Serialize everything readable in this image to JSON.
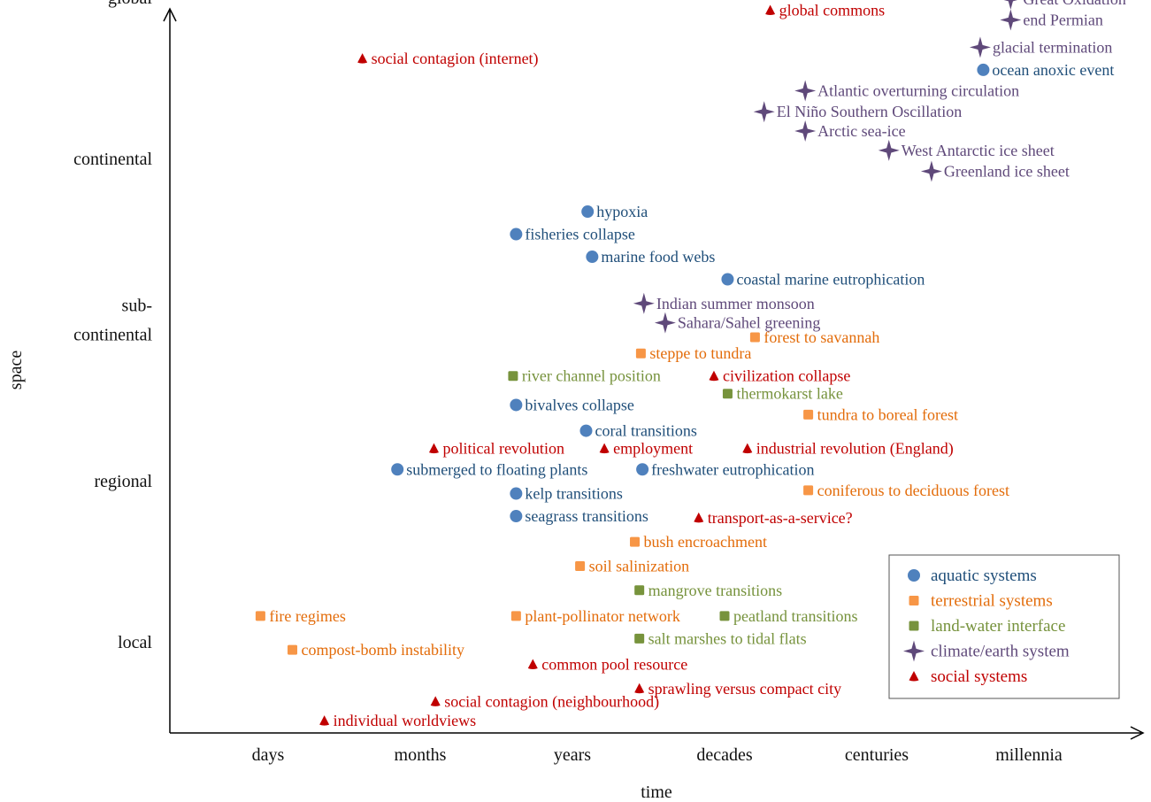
{
  "chart_data": {
    "type": "scatter",
    "title": "",
    "xlabel": "time",
    "ylabel": "space",
    "x_categories": [
      "days",
      "months",
      "years",
      "decades",
      "centuries",
      "millennia"
    ],
    "y_categories": [
      "local",
      "regional",
      "sub-continental",
      "continental",
      "global"
    ],
    "y_tick_labels": {
      "local": [
        "local"
      ],
      "regional": [
        "regional"
      ],
      "sub-continental": [
        "sub-",
        "continental"
      ],
      "continental": [
        "continental"
      ],
      "global": [
        "global"
      ]
    },
    "xlim": [
      -0.5,
      5.5
    ],
    "ylim": [
      -0.55,
      4.1
    ],
    "grid": false,
    "legend_position": "bottom-right",
    "series": [
      {
        "name": "aquatic systems",
        "key": "aquatic",
        "color": "#4f81bd",
        "label_color": "#1f4e79",
        "marker": "circle",
        "points": [
          {
            "label": "ocean anoxic event",
            "x": 4.7,
            "y": 3.55
          },
          {
            "label": "hypoxia",
            "x": 2.1,
            "y": 2.67
          },
          {
            "label": "fisheries collapse",
            "x": 1.63,
            "y": 2.53
          },
          {
            "label": "marine food webs",
            "x": 2.13,
            "y": 2.39
          },
          {
            "label": "coastal marine eutrophication",
            "x": 3.02,
            "y": 2.25
          },
          {
            "label": "bivalves collapse",
            "x": 1.63,
            "y": 1.47
          },
          {
            "label": "coral transitions",
            "x": 2.09,
            "y": 1.31
          },
          {
            "label": "submerged to floating plants",
            "x": 0.85,
            "y": 1.07
          },
          {
            "label": "freshwater eutrophication",
            "x": 2.46,
            "y": 1.07
          },
          {
            "label": "kelp transitions",
            "x": 1.63,
            "y": 0.92
          },
          {
            "label": "seagrass transitions",
            "x": 1.63,
            "y": 0.78
          }
        ]
      },
      {
        "name": "terrestrial systems",
        "key": "terrestrial",
        "color": "#f79646",
        "label_color": "#e36c0a",
        "marker": "square",
        "points": [
          {
            "label": "forest to savannah",
            "x": 3.2,
            "y": 1.89
          },
          {
            "label": "steppe to tundra",
            "x": 2.45,
            "y": 1.79
          },
          {
            "label": "tundra to boreal forest",
            "x": 3.55,
            "y": 1.41
          },
          {
            "label": "coniferous to deciduous forest",
            "x": 3.55,
            "y": 0.94
          },
          {
            "label": "bush encroachment",
            "x": 2.41,
            "y": 0.62
          },
          {
            "label": "soil salinization",
            "x": 2.05,
            "y": 0.47
          },
          {
            "label": "fire regimes",
            "x": -0.05,
            "y": 0.16
          },
          {
            "label": "plant-pollinator network",
            "x": 1.63,
            "y": 0.16
          },
          {
            "label": "compost-bomb instability",
            "x": 0.16,
            "y": -0.05
          }
        ]
      },
      {
        "name": "land-water interface",
        "key": "landwater",
        "color": "#77933c",
        "label_color": "#76923c",
        "marker": "square",
        "points": [
          {
            "label": "river channel position",
            "x": 1.61,
            "y": 1.65
          },
          {
            "label": "thermokarst lake",
            "x": 3.02,
            "y": 1.54
          },
          {
            "label": "mangrove transitions",
            "x": 2.44,
            "y": 0.32
          },
          {
            "label": "peatland transitions",
            "x": 3.0,
            "y": 0.16
          },
          {
            "label": "salt marshes to tidal flats",
            "x": 2.44,
            "y": 0.02
          }
        ]
      },
      {
        "name": "climate/earth system",
        "key": "climate",
        "color": "#5f497a",
        "label_color": "#5f497a",
        "marker": "star",
        "points": [
          {
            "label": "Great Oxidation",
            "x": 4.88,
            "y": 3.99
          },
          {
            "label": "end Permian",
            "x": 4.88,
            "y": 3.86
          },
          {
            "label": "glacial termination",
            "x": 4.68,
            "y": 3.69
          },
          {
            "label": "Atlantic overturning circulation",
            "x": 3.53,
            "y": 3.42
          },
          {
            "label": "El Niño Southern Oscillation",
            "x": 3.26,
            "y": 3.29
          },
          {
            "label": "Arctic sea-ice",
            "x": 3.53,
            "y": 3.17
          },
          {
            "label": "West Antarctic ice sheet",
            "x": 4.08,
            "y": 3.05
          },
          {
            "label": "Greenland ice sheet",
            "x": 4.36,
            "y": 2.92
          },
          {
            "label": "Indian summer monsoon",
            "x": 2.47,
            "y": 2.1
          },
          {
            "label": "Sahara/Sahel greening",
            "x": 2.61,
            "y": 1.98
          }
        ]
      },
      {
        "name": "social systems",
        "key": "social",
        "color": "#c00000",
        "label_color": "#c00000",
        "marker": "triangle",
        "points": [
          {
            "label": "global commons",
            "x": 3.3,
            "y": 3.92
          },
          {
            "label": "social contagion (internet)",
            "x": 0.62,
            "y": 3.62
          },
          {
            "label": "civilization collapse",
            "x": 2.93,
            "y": 1.65
          },
          {
            "label": "political revolution",
            "x": 1.09,
            "y": 1.2
          },
          {
            "label": "employment",
            "x": 2.21,
            "y": 1.2
          },
          {
            "label": "industrial revolution (England)",
            "x": 3.15,
            "y": 1.2
          },
          {
            "label": "transport-as-a-service?",
            "x": 2.83,
            "y": 0.77
          },
          {
            "label": "common pool resource",
            "x": 1.74,
            "y": -0.14
          },
          {
            "label": "sprawling versus compact city",
            "x": 2.44,
            "y": -0.29
          },
          {
            "label": "social contagion (neighbourhood)",
            "x": 1.1,
            "y": -0.37
          },
          {
            "label": "individual worldviews",
            "x": 0.37,
            "y": -0.49
          }
        ]
      }
    ]
  }
}
